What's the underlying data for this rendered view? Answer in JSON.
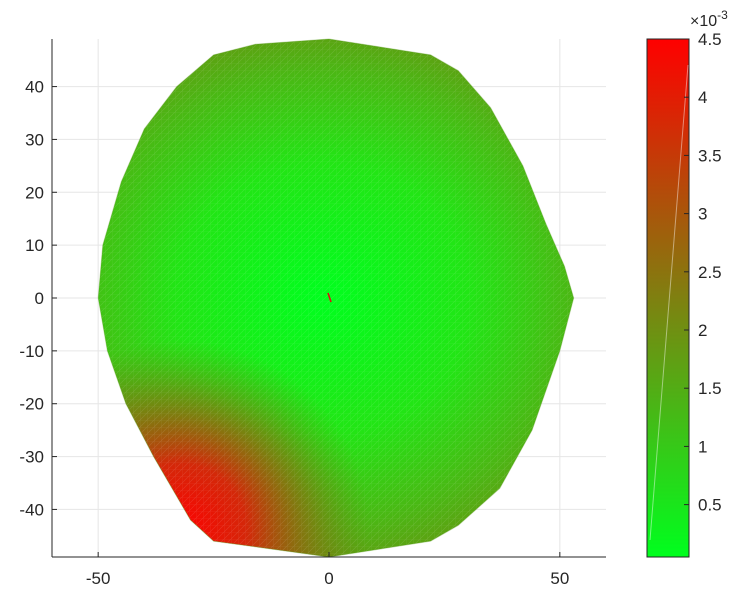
{
  "chart_data": {
    "type": "heatmap",
    "title": "",
    "xlabel": "",
    "ylabel": "",
    "xlim": [
      -60,
      60
    ],
    "ylim": [
      -49,
      49
    ],
    "grid": true,
    "x_ticks": [
      -50,
      0,
      50
    ],
    "y_ticks": [
      -40,
      -30,
      -20,
      -10,
      0,
      10,
      20,
      30,
      40
    ],
    "x_tick_labels": [
      "-50",
      "0",
      "50"
    ],
    "y_tick_labels": [
      "-40",
      "-30",
      "-20",
      "-10",
      "0",
      "10",
      "20",
      "30",
      "40"
    ],
    "boundary": [
      [
        0,
        49
      ],
      [
        22,
        46
      ],
      [
        28,
        43
      ],
      [
        35,
        36
      ],
      [
        42,
        25
      ],
      [
        47,
        14
      ],
      [
        51,
        6
      ],
      [
        53,
        0
      ],
      [
        50,
        -10
      ],
      [
        44,
        -25
      ],
      [
        37,
        -36
      ],
      [
        28,
        -43
      ],
      [
        22,
        -46
      ],
      [
        0,
        -49
      ],
      [
        -25,
        -46
      ],
      [
        -30,
        -42
      ],
      [
        -38,
        -30
      ],
      [
        -44,
        -20
      ],
      [
        -48,
        -10
      ],
      [
        -50,
        0
      ],
      [
        -49,
        10
      ],
      [
        -45,
        22
      ],
      [
        -40,
        32
      ],
      [
        -33,
        40
      ],
      [
        -25,
        46
      ],
      [
        -16,
        48
      ]
    ],
    "field": {
      "minimum": {
        "x": 0,
        "y": 0,
        "value": 0.0002
      },
      "maximum": {
        "x": -35,
        "y": -45,
        "value": 0.0045
      }
    },
    "colorbar": {
      "range": [
        5e-05,
        0.0045
      ],
      "ticks": [
        0.5,
        1,
        1.5,
        2,
        2.5,
        3,
        3.5,
        4,
        4.5
      ],
      "tick_labels": [
        "0.5",
        "1",
        "1.5",
        "2",
        "2.5",
        "3",
        "3.5",
        "4",
        "4.5"
      ],
      "scale_base": "×10",
      "scale_exponent": "-3",
      "colormap": [
        "#00ff1e",
        "#ff0000"
      ]
    }
  }
}
